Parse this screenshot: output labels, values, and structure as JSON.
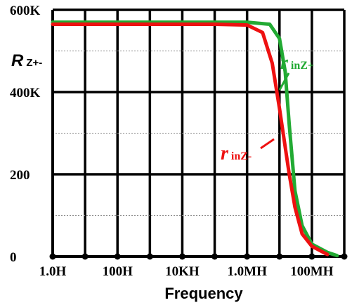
{
  "chart_data": {
    "type": "line",
    "xlabel": "Frequency",
    "ylabel_main": "R",
    "ylabel_sub": "Z+-",
    "x_tick_labels": [
      "1.0H",
      "100H",
      "10KH",
      "1.0MH",
      "100MH"
    ],
    "y_tick_labels": [
      "0",
      "200",
      "400K",
      "600K"
    ],
    "x_scale": "log",
    "x_range": [
      1,
      1000000000
    ],
    "y_range": [
      0,
      600000
    ],
    "grid": true,
    "series": [
      {
        "name": "rinZ-",
        "label_main": "r",
        "label_sub": "inZ-",
        "color": "#ee1111",
        "x": [
          1,
          10,
          100,
          1000,
          10000,
          100000,
          1000000,
          3000000,
          6000000,
          10000000,
          20000000,
          30000000,
          50000000,
          100000000,
          300000000
        ],
        "y": [
          565000,
          565000,
          565000,
          565000,
          565000,
          565000,
          563000,
          545000,
          470000,
          360000,
          200000,
          120000,
          55000,
          25000,
          5000
        ]
      },
      {
        "name": "rinZ+",
        "label_main": "r",
        "label_sub": "inZ+",
        "color": "#22aa33",
        "x": [
          1,
          10,
          100,
          1000,
          10000,
          100000,
          1000000,
          5000000,
          10000000,
          15000000,
          20000000,
          30000000,
          50000000,
          100000000,
          300000000,
          600000000
        ],
        "y": [
          570000,
          570000,
          570000,
          570000,
          570000,
          570000,
          570000,
          565000,
          530000,
          450000,
          320000,
          160000,
          75000,
          30000,
          10000,
          2000
        ]
      }
    ]
  }
}
